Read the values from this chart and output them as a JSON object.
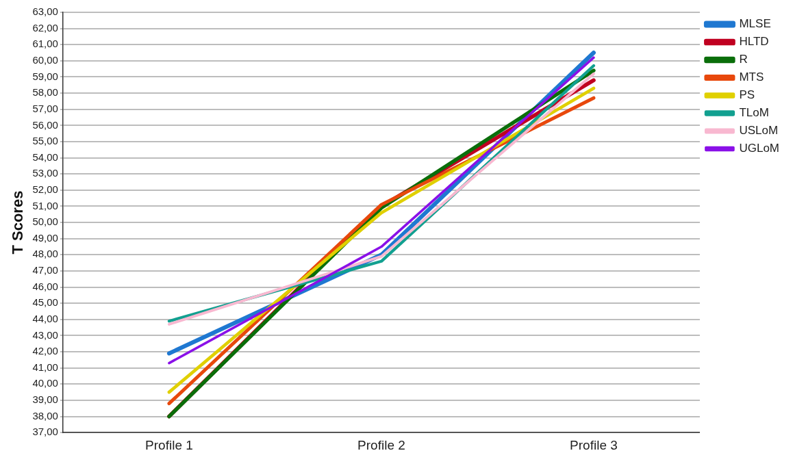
{
  "chart_data": {
    "type": "line",
    "ylabel": "T Scores",
    "categories": [
      "Profile 1",
      "Profile 2",
      "Profile 3"
    ],
    "ylim": [
      37,
      63
    ],
    "yticks": [
      {
        "value": 37,
        "label": "37,00"
      },
      {
        "value": 38,
        "label": "38,00"
      },
      {
        "value": 39,
        "label": "39,00"
      },
      {
        "value": 40,
        "label": "40,00"
      },
      {
        "value": 41,
        "label": "41,00"
      },
      {
        "value": 42,
        "label": "42,00"
      },
      {
        "value": 43,
        "label": "43,00"
      },
      {
        "value": 44,
        "label": "44,00"
      },
      {
        "value": 45,
        "label": "45,00"
      },
      {
        "value": 46,
        "label": "46,00"
      },
      {
        "value": 47,
        "label": "47,00"
      },
      {
        "value": 48,
        "label": "48,00"
      },
      {
        "value": 49,
        "label": "49,00"
      },
      {
        "value": 50,
        "label": "50,00"
      },
      {
        "value": 51,
        "label": "51,00"
      },
      {
        "value": 52,
        "label": "52,00"
      },
      {
        "value": 53,
        "label": "53,00"
      },
      {
        "value": 54,
        "label": "54,00"
      },
      {
        "value": 55,
        "label": "55,00"
      },
      {
        "value": 56,
        "label": "56,00"
      },
      {
        "value": 57,
        "label": "57,00"
      },
      {
        "value": 58,
        "label": "58,00"
      },
      {
        "value": 59,
        "label": "59,00"
      },
      {
        "value": 60,
        "label": "60,00"
      },
      {
        "value": 61,
        "label": "61,00"
      },
      {
        "value": 62,
        "label": "62,00"
      },
      {
        "value": 63,
        "label": "63,00"
      }
    ],
    "grid": "y",
    "legend": "top right",
    "marker": "none",
    "line_style": "solid",
    "series": [
      {
        "name": "MLSE",
        "color": "#1f78d1",
        "values": [
          41.9,
          48.0,
          60.5
        ]
      },
      {
        "name": "HLTD",
        "color": "#c00020",
        "values": [
          38.0,
          51.0,
          58.8
        ]
      },
      {
        "name": "R",
        "color": "#0a6e0a",
        "values": [
          38.0,
          50.9,
          59.4
        ]
      },
      {
        "name": "MTS",
        "color": "#e8480c",
        "values": [
          38.8,
          51.1,
          57.7
        ]
      },
      {
        "name": "PS",
        "color": "#e0d000",
        "values": [
          39.5,
          50.6,
          58.3
        ]
      },
      {
        "name": "TLoM",
        "color": "#12a090",
        "values": [
          43.9,
          47.6,
          59.7
        ]
      },
      {
        "name": "USLoM",
        "color": "#f8b8d0",
        "values": [
          43.7,
          47.9,
          59.2
        ]
      },
      {
        "name": "UGLoM",
        "color": "#8a10e8",
        "values": [
          41.3,
          48.5,
          60.2
        ]
      }
    ]
  }
}
